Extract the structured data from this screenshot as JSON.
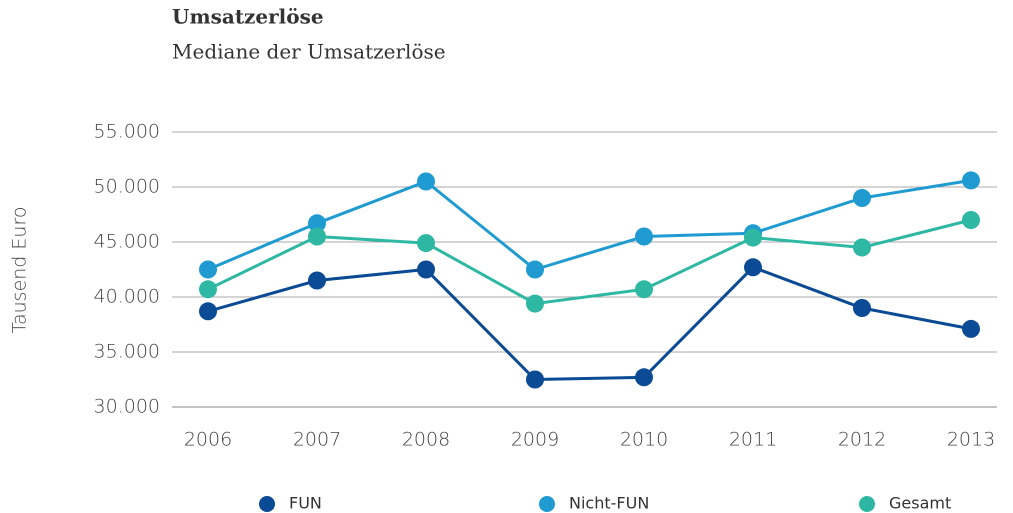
{
  "chart_data": {
    "type": "line",
    "title": "Umsatzerlöse",
    "subtitle": "Mediane der Umsatzerlöse",
    "y_label": "Tausend Euro",
    "categories": [
      "2006",
      "2007",
      "2008",
      "2009",
      "2010",
      "2011",
      "2012",
      "2013"
    ],
    "series": [
      {
        "name": "FUN",
        "color": "#0b4a94",
        "values": [
          38700,
          41500,
          42500,
          32500,
          32700,
          42700,
          39000,
          37100
        ]
      },
      {
        "name": "Nicht-FUN",
        "color": "#1f9bd1",
        "values": [
          42500,
          46700,
          50500,
          42500,
          45500,
          45800,
          49000,
          50600
        ]
      },
      {
        "name": "Gesamt",
        "color": "#2eb8a3",
        "values": [
          40700,
          45500,
          44900,
          39400,
          40700,
          45400,
          44500,
          47000
        ]
      }
    ],
    "ylim": [
      30000,
      55000
    ],
    "yticks": [
      {
        "value": 30000,
        "label": "30.000"
      },
      {
        "value": 35000,
        "label": "35.000"
      },
      {
        "value": 40000,
        "label": "40.000"
      },
      {
        "value": 45000,
        "label": "45.000"
      },
      {
        "value": 50000,
        "label": "50.000"
      },
      {
        "value": 55000,
        "label": "55.000"
      }
    ],
    "grid": true,
    "legend": "bottom"
  }
}
